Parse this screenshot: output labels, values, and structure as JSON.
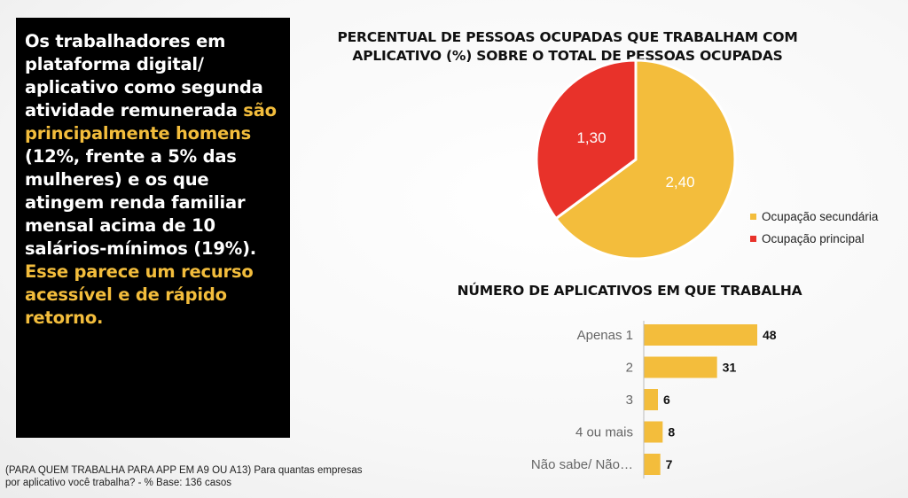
{
  "callout": {
    "p1": "Os trabalhadores em plataforma digital/ aplicativo como segunda atividade remunerada ",
    "h1": "são principalmente homens",
    "p2": " (12%, frente a 5% das mulheres) e os que atingem renda familiar mensal acima de 10 salários-mínimos (19%). ",
    "h2": "Esse parece um recurso acessível e de rápido retorno."
  },
  "footnote": "(PARA QUEM TRABALHA PARA APP EM A9 OU A13) Para quantas empresas por aplicativo você trabalha? - % Base: 136 casos",
  "colors": {
    "yellow": "#f3bd3c",
    "red": "#e8322a",
    "highlight": "#f3bd3c"
  },
  "chart_data": [
    {
      "type": "pie",
      "title": "PERCENTUAL DE PESSOAS OCUPADAS QUE TRABALHAM COM APLICATIVO (%) SOBRE O TOTAL DE PESSOAS OCUPADAS",
      "slices": [
        {
          "label": "Ocupação  secundária",
          "value": 2.4,
          "display": "2,40",
          "color": "#f3bd3c"
        },
        {
          "label": "Ocupação principal",
          "value": 1.3,
          "display": "1,30",
          "color": "#e8322a"
        }
      ],
      "legend_position": "right"
    },
    {
      "type": "bar",
      "orientation": "horizontal",
      "title": "NÚMERO DE APLICATIVOS EM QUE TRABALHA",
      "categories": [
        "Apenas 1",
        "2",
        "3",
        "4 ou mais",
        "Não sabe/ Não…"
      ],
      "values": [
        48,
        31,
        6,
        8,
        7
      ],
      "color": "#f3bd3c",
      "grid": false
    }
  ]
}
